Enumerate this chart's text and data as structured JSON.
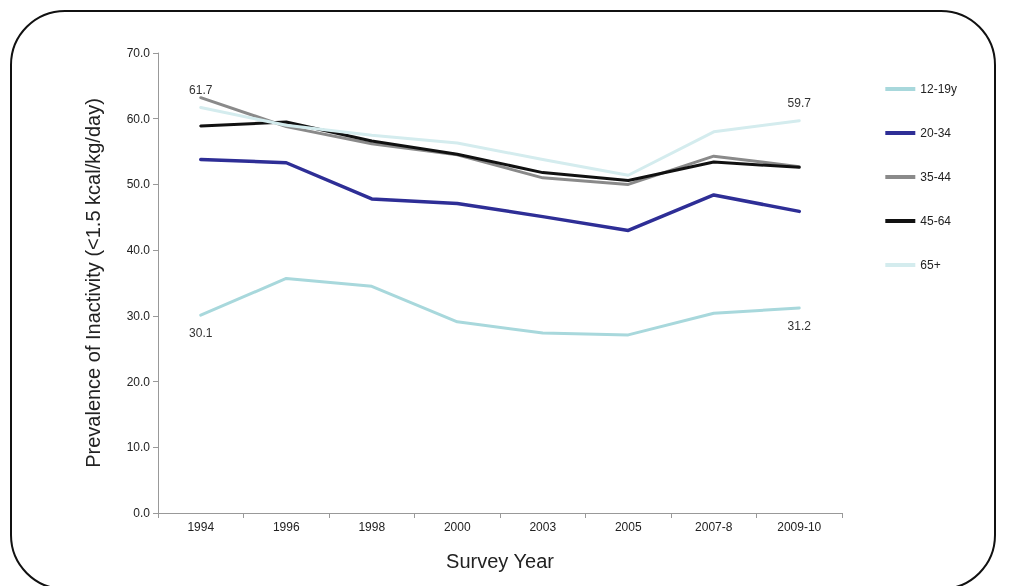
{
  "chart_data": {
    "type": "line",
    "xlabel": "Survey Year",
    "ylabel": "Prevalence of Inactivity (<1.5 kcal/kg/day)",
    "categories": [
      "1994",
      "1996",
      "1998",
      "2000",
      "2003",
      "2005",
      "2007-8",
      "2009-10"
    ],
    "series": [
      {
        "name": "12-19y",
        "color": "#a8d8dc",
        "values": [
          30.1,
          35.7,
          34.5,
          29.1,
          27.4,
          27.1,
          30.4,
          31.2
        ]
      },
      {
        "name": "20-34",
        "color": "#2e2e96",
        "values": [
          53.8,
          53.3,
          47.8,
          47.1,
          45.1,
          43.0,
          48.4,
          45.9
        ]
      },
      {
        "name": "35-44",
        "color": "#8a8a8a",
        "values": [
          63.2,
          58.8,
          56.2,
          54.5,
          51.0,
          50.0,
          54.3,
          52.7
        ]
      },
      {
        "name": "45-64",
        "color": "#111111",
        "values": [
          58.9,
          59.5,
          56.6,
          54.6,
          51.8,
          50.6,
          53.4,
          52.6
        ]
      },
      {
        "name": "65+",
        "color": "#d4ecee",
        "values": [
          61.7,
          59.0,
          57.5,
          56.3,
          53.8,
          51.4,
          58.0,
          59.7
        ]
      }
    ],
    "ylim": [
      0,
      70
    ],
    "yticks": [
      {
        "value": 0,
        "label": "0.0"
      },
      {
        "value": 10,
        "label": "10.0"
      },
      {
        "value": 20,
        "label": "20.0"
      },
      {
        "value": 30,
        "label": "30.0"
      },
      {
        "value": 40,
        "label": "40.0"
      },
      {
        "value": 50,
        "label": "50.0"
      },
      {
        "value": 60,
        "label": "60.0"
      },
      {
        "value": 70,
        "label": "70.0"
      }
    ],
    "annotations": [
      {
        "text": "61.7",
        "x": "1994",
        "y": 61.7
      },
      {
        "text": "59.7",
        "x": "2009-10",
        "y": 59.7
      },
      {
        "text": "30.1",
        "x": "1994",
        "y": 30.1
      },
      {
        "text": "31.2",
        "x": "2009-10",
        "y": 31.2
      }
    ],
    "grid": false,
    "legend": "right",
    "marker": "none",
    "line_style": "solid"
  }
}
